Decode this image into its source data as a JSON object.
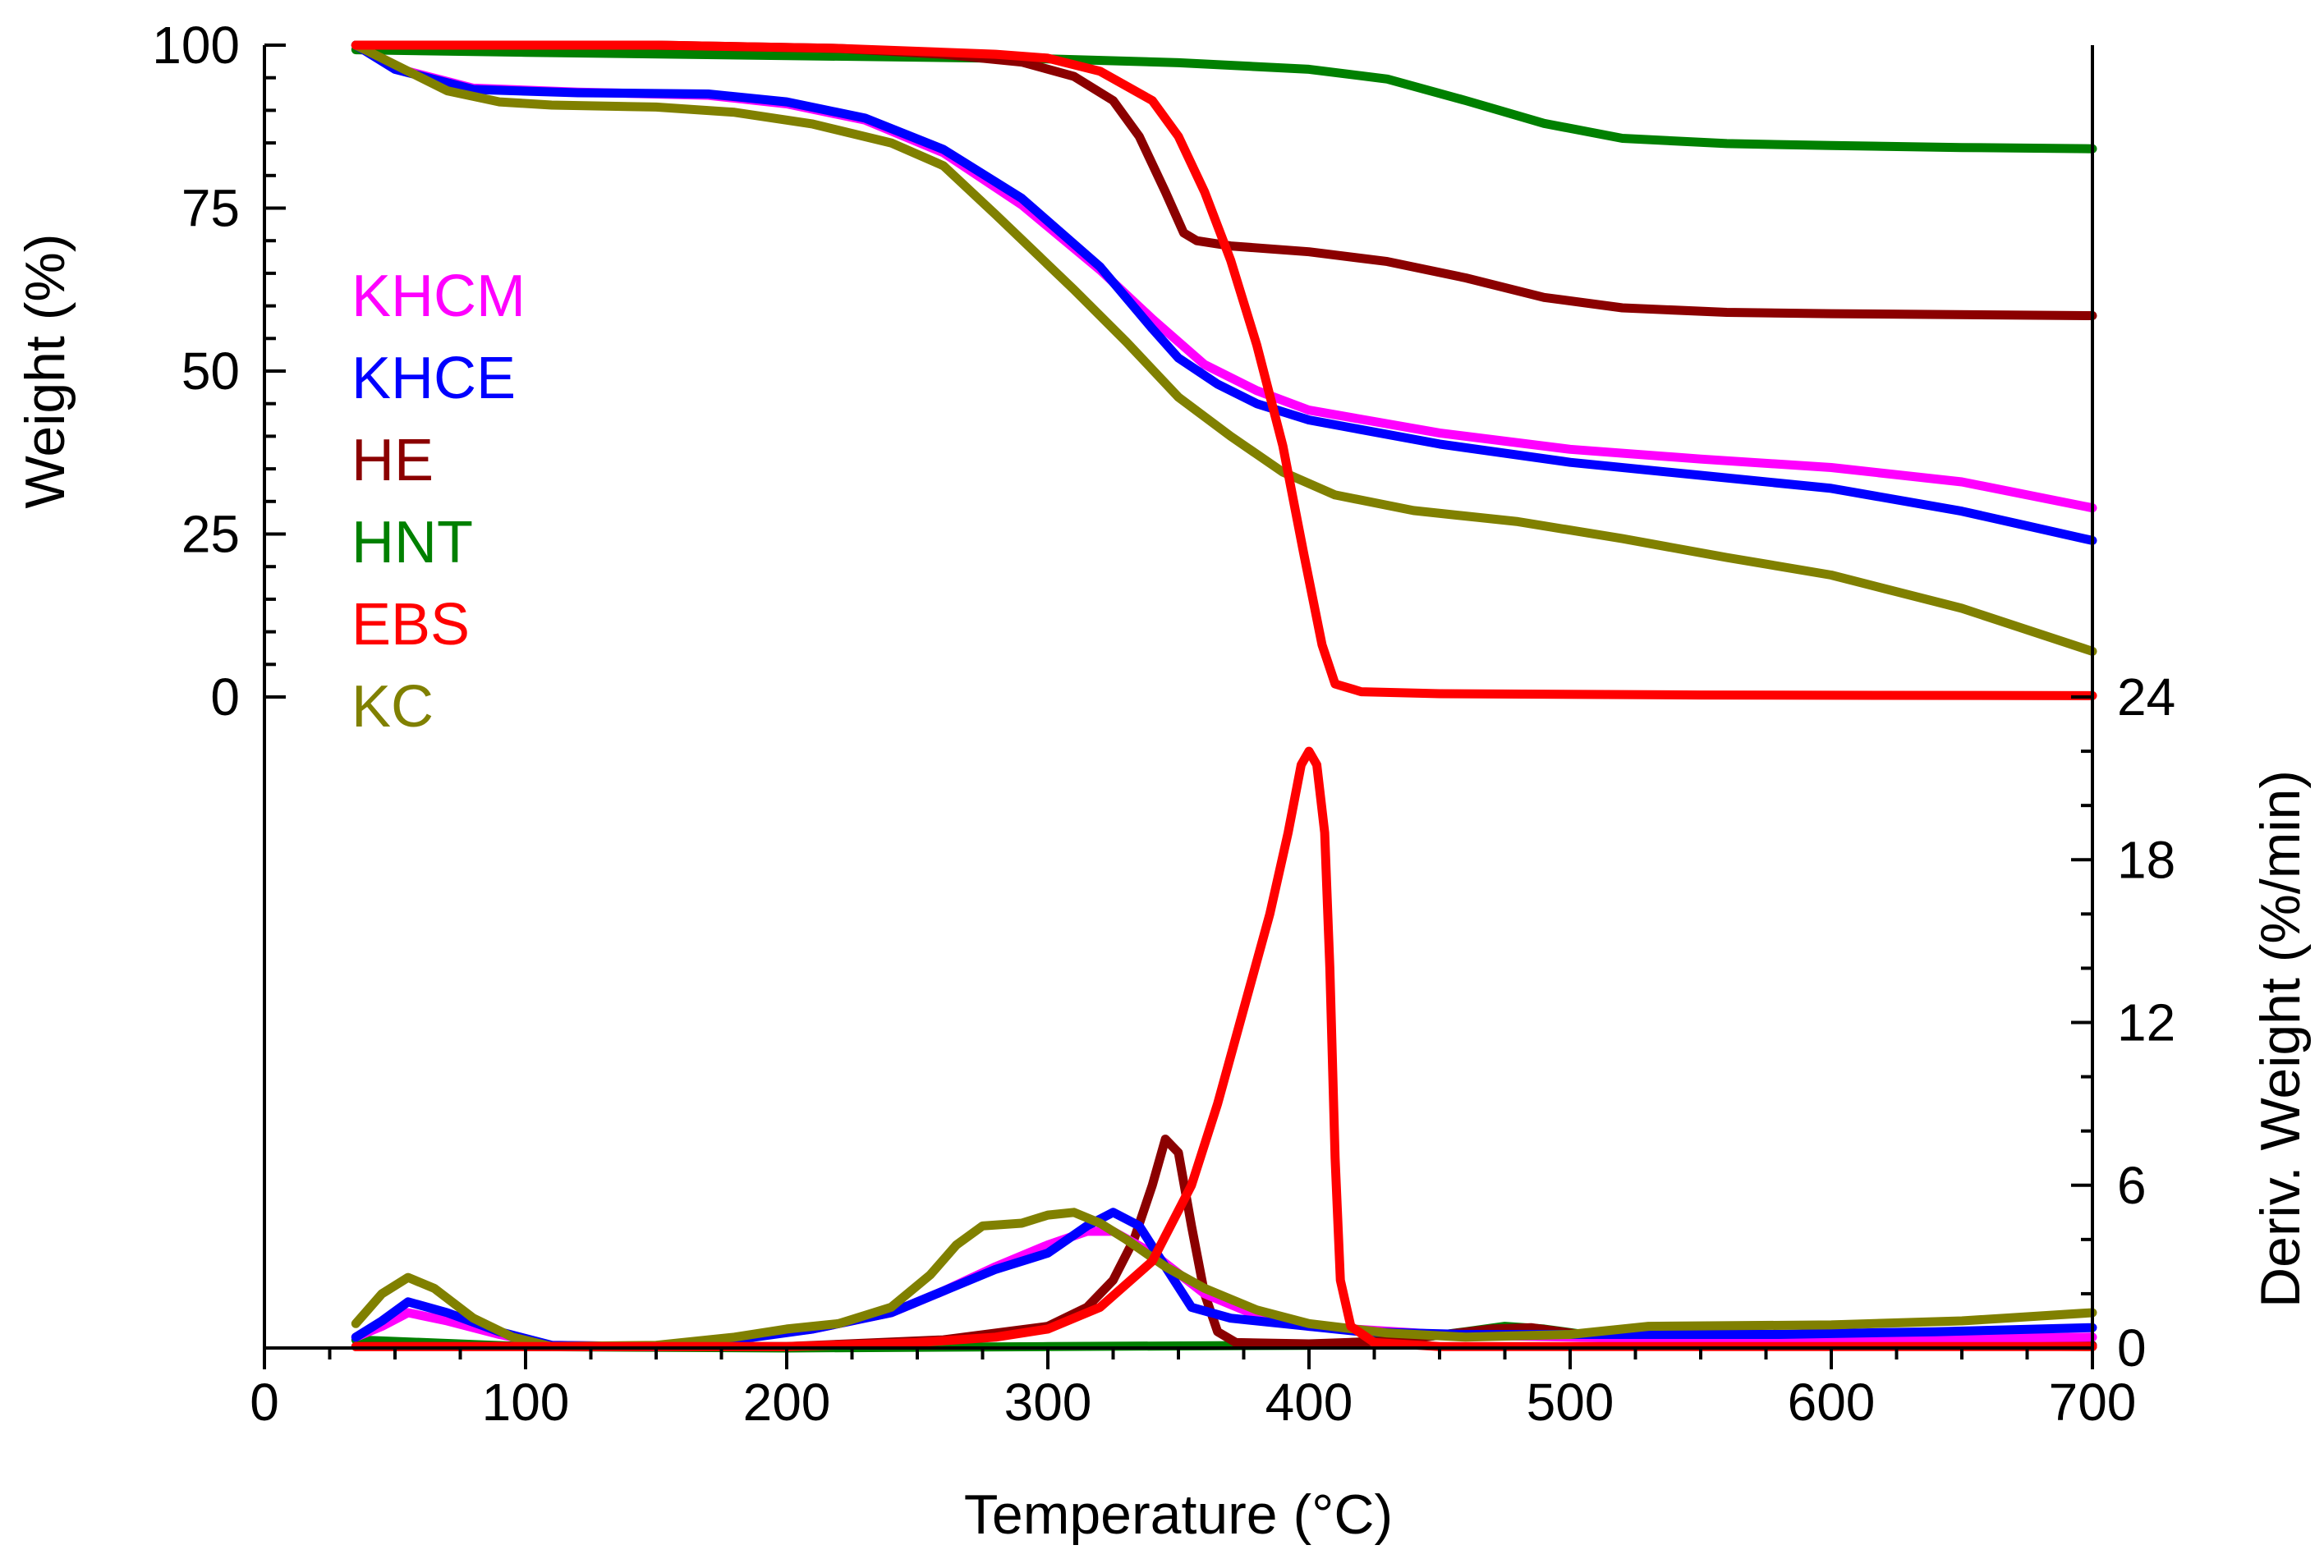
{
  "chart_data": {
    "type": "line",
    "x_axis": {
      "label": "Temperature (°C)",
      "range": [
        0,
        700
      ],
      "ticks": [
        0,
        100,
        200,
        300,
        400,
        500,
        600,
        700
      ],
      "minor_step": 25
    },
    "y_left": {
      "label": "Weight (%)",
      "range": [
        0,
        100
      ],
      "ticks": [
        0,
        25,
        50,
        75,
        100
      ],
      "minor_step": 5
    },
    "y_right": {
      "label": "Deriv. Weight (%/min)",
      "range": [
        0,
        24
      ],
      "ticks": [
        0,
        6,
        12,
        18,
        24
      ],
      "minor_step": 2
    },
    "legend": [
      {
        "label": "KHCM",
        "color": "#ff00ff"
      },
      {
        "label": "KHCE",
        "color": "#0000ff"
      },
      {
        "label": "HE",
        "color": "#8b0000"
      },
      {
        "label": "HNT",
        "color": "#008000"
      },
      {
        "label": "EBS",
        "color": "#ff0000"
      },
      {
        "label": "KC",
        "color": "#808000"
      }
    ],
    "weight_series": [
      {
        "name": "HNT",
        "color": "#008000",
        "points": [
          [
            35,
            99.3
          ],
          [
            100,
            98.9
          ],
          [
            200,
            98.4
          ],
          [
            300,
            97.9
          ],
          [
            350,
            97.3
          ],
          [
            400,
            96.3
          ],
          [
            430,
            94.8
          ],
          [
            460,
            91.5
          ],
          [
            490,
            88
          ],
          [
            520,
            85.7
          ],
          [
            560,
            84.9
          ],
          [
            600,
            84.6
          ],
          [
            650,
            84.3
          ],
          [
            700,
            84.1
          ]
        ]
      },
      {
        "name": "HE",
        "color": "#8b0000",
        "points": [
          [
            35,
            100
          ],
          [
            150,
            100
          ],
          [
            220,
            99.5
          ],
          [
            260,
            98.6
          ],
          [
            290,
            97.4
          ],
          [
            310,
            95.2
          ],
          [
            325,
            91.5
          ],
          [
            335,
            86
          ],
          [
            345,
            77.5
          ],
          [
            352,
            71.2
          ],
          [
            357,
            70
          ],
          [
            370,
            69.2
          ],
          [
            400,
            68.3
          ],
          [
            430,
            66.8
          ],
          [
            460,
            64.3
          ],
          [
            490,
            61.3
          ],
          [
            520,
            59.7
          ],
          [
            560,
            59
          ],
          [
            600,
            58.8
          ],
          [
            700,
            58.5
          ]
        ]
      },
      {
        "name": "KHCM",
        "color": "#ff00ff",
        "points": [
          [
            35,
            100
          ],
          [
            50,
            96.5
          ],
          [
            80,
            93.4
          ],
          [
            120,
            92.8
          ],
          [
            170,
            92.3
          ],
          [
            200,
            91
          ],
          [
            230,
            88.5
          ],
          [
            260,
            83.5
          ],
          [
            290,
            75.5
          ],
          [
            320,
            65.5
          ],
          [
            340,
            58
          ],
          [
            360,
            51
          ],
          [
            380,
            47
          ],
          [
            400,
            44
          ],
          [
            450,
            40.5
          ],
          [
            500,
            38
          ],
          [
            550,
            36.5
          ],
          [
            600,
            35.2
          ],
          [
            650,
            33
          ],
          [
            700,
            29
          ]
        ]
      },
      {
        "name": "KHCE",
        "color": "#0000ff",
        "points": [
          [
            35,
            100
          ],
          [
            50,
            96.3
          ],
          [
            80,
            93.2
          ],
          [
            120,
            92.7
          ],
          [
            170,
            92.5
          ],
          [
            200,
            91.3
          ],
          [
            230,
            88.8
          ],
          [
            260,
            84
          ],
          [
            290,
            76.5
          ],
          [
            320,
            66
          ],
          [
            340,
            56.5
          ],
          [
            350,
            52
          ],
          [
            365,
            48
          ],
          [
            380,
            45
          ],
          [
            400,
            42.5
          ],
          [
            450,
            38.8
          ],
          [
            500,
            36
          ],
          [
            550,
            34
          ],
          [
            600,
            32
          ],
          [
            650,
            28.5
          ],
          [
            700,
            24
          ]
        ]
      },
      {
        "name": "KC",
        "color": "#808000",
        "points": [
          [
            35,
            100
          ],
          [
            50,
            97
          ],
          [
            70,
            93
          ],
          [
            90,
            91.3
          ],
          [
            110,
            90.8
          ],
          [
            150,
            90.5
          ],
          [
            180,
            89.7
          ],
          [
            210,
            87.9
          ],
          [
            240,
            85
          ],
          [
            260,
            81.5
          ],
          [
            280,
            74
          ],
          [
            310,
            62.5
          ],
          [
            330,
            54.5
          ],
          [
            350,
            46
          ],
          [
            370,
            40
          ],
          [
            390,
            34.5
          ],
          [
            410,
            31
          ],
          [
            440,
            28.6
          ],
          [
            480,
            26.9
          ],
          [
            520,
            24.3
          ],
          [
            560,
            21.4
          ],
          [
            600,
            18.7
          ],
          [
            650,
            13.6
          ],
          [
            700,
            7
          ]
        ]
      },
      {
        "name": "EBS",
        "color": "#ff0000",
        "points": [
          [
            35,
            100
          ],
          [
            150,
            100
          ],
          [
            220,
            99.5
          ],
          [
            280,
            98.6
          ],
          [
            300,
            98
          ],
          [
            320,
            96
          ],
          [
            340,
            91.5
          ],
          [
            350,
            86
          ],
          [
            360,
            77.5
          ],
          [
            370,
            67
          ],
          [
            380,
            54
          ],
          [
            390,
            38.5
          ],
          [
            398,
            22
          ],
          [
            405,
            8
          ],
          [
            410,
            2
          ],
          [
            420,
            0.8
          ],
          [
            450,
            0.5
          ],
          [
            550,
            0.3
          ],
          [
            700,
            0.2
          ]
        ]
      }
    ],
    "deriv_series": [
      {
        "name": "HNT",
        "color": "#008000",
        "points": [
          [
            35,
            0.3
          ],
          [
            100,
            0.05
          ],
          [
            200,
            0
          ],
          [
            300,
            0.05
          ],
          [
            400,
            0.1
          ],
          [
            440,
            0.35
          ],
          [
            460,
            0.6
          ],
          [
            475,
            0.8
          ],
          [
            490,
            0.7
          ],
          [
            505,
            0.5
          ],
          [
            520,
            0.3
          ],
          [
            560,
            0.15
          ],
          [
            700,
            0.05
          ]
        ]
      },
      {
        "name": "HE",
        "color": "#8b0000",
        "points": [
          [
            35,
            0.05
          ],
          [
            200,
            0.05
          ],
          [
            260,
            0.3
          ],
          [
            300,
            0.8
          ],
          [
            315,
            1.5
          ],
          [
            325,
            2.5
          ],
          [
            333,
            4
          ],
          [
            340,
            6
          ],
          [
            345,
            7.7
          ],
          [
            350,
            7.2
          ],
          [
            355,
            4.5
          ],
          [
            360,
            2
          ],
          [
            365,
            0.6
          ],
          [
            372,
            0.2
          ],
          [
            400,
            0.15
          ],
          [
            430,
            0.25
          ],
          [
            470,
            0.7
          ],
          [
            485,
            0.75
          ],
          [
            500,
            0.55
          ],
          [
            520,
            0.3
          ],
          [
            560,
            0.15
          ],
          [
            700,
            0.1
          ]
        ]
      },
      {
        "name": "KHCM",
        "color": "#ff00ff",
        "points": [
          [
            35,
            0.4
          ],
          [
            45,
            0.8
          ],
          [
            55,
            1.3
          ],
          [
            70,
            1
          ],
          [
            90,
            0.5
          ],
          [
            110,
            0.1
          ],
          [
            150,
            0.05
          ],
          [
            180,
            0.35
          ],
          [
            210,
            0.7
          ],
          [
            240,
            1.3
          ],
          [
            260,
            2.1
          ],
          [
            280,
            3
          ],
          [
            300,
            3.8
          ],
          [
            315,
            4.3
          ],
          [
            325,
            4.3
          ],
          [
            340,
            3.5
          ],
          [
            360,
            2
          ],
          [
            380,
            1.2
          ],
          [
            400,
            0.8
          ],
          [
            450,
            0.5
          ],
          [
            500,
            0.4
          ],
          [
            550,
            0.3
          ],
          [
            600,
            0.3
          ],
          [
            700,
            0.4
          ]
        ]
      },
      {
        "name": "KHCE",
        "color": "#0000ff",
        "points": [
          [
            35,
            0.4
          ],
          [
            45,
            1
          ],
          [
            55,
            1.7
          ],
          [
            70,
            1.3
          ],
          [
            90,
            0.6
          ],
          [
            110,
            0.1
          ],
          [
            150,
            0.05
          ],
          [
            180,
            0.3
          ],
          [
            210,
            0.7
          ],
          [
            240,
            1.3
          ],
          [
            260,
            2.1
          ],
          [
            280,
            2.9
          ],
          [
            300,
            3.5
          ],
          [
            315,
            4.5
          ],
          [
            325,
            5
          ],
          [
            335,
            4.5
          ],
          [
            345,
            3
          ],
          [
            355,
            1.5
          ],
          [
            370,
            1.1
          ],
          [
            390,
            0.9
          ],
          [
            420,
            0.6
          ],
          [
            460,
            0.5
          ],
          [
            520,
            0.5
          ],
          [
            580,
            0.5
          ],
          [
            640,
            0.6
          ],
          [
            700,
            0.75
          ]
        ]
      },
      {
        "name": "KC",
        "color": "#808000",
        "points": [
          [
            35,
            0.9
          ],
          [
            45,
            2
          ],
          [
            55,
            2.6
          ],
          [
            65,
            2.2
          ],
          [
            80,
            1.1
          ],
          [
            95,
            0.4
          ],
          [
            110,
            0.05
          ],
          [
            150,
            0.1
          ],
          [
            180,
            0.4
          ],
          [
            200,
            0.7
          ],
          [
            220,
            0.9
          ],
          [
            240,
            1.5
          ],
          [
            255,
            2.7
          ],
          [
            265,
            3.8
          ],
          [
            275,
            4.5
          ],
          [
            290,
            4.6
          ],
          [
            300,
            4.9
          ],
          [
            310,
            5
          ],
          [
            320,
            4.6
          ],
          [
            330,
            4
          ],
          [
            345,
            3
          ],
          [
            360,
            2.2
          ],
          [
            380,
            1.4
          ],
          [
            400,
            0.9
          ],
          [
            430,
            0.55
          ],
          [
            460,
            0.4
          ],
          [
            500,
            0.5
          ],
          [
            530,
            0.8
          ],
          [
            600,
            0.85
          ],
          [
            650,
            1
          ],
          [
            700,
            1.3
          ]
        ]
      },
      {
        "name": "EBS",
        "color": "#ff0000",
        "points": [
          [
            35,
            0.05
          ],
          [
            200,
            0.05
          ],
          [
            250,
            0.2
          ],
          [
            280,
            0.4
          ],
          [
            300,
            0.7
          ],
          [
            320,
            1.5
          ],
          [
            340,
            3.2
          ],
          [
            355,
            6
          ],
          [
            365,
            9
          ],
          [
            375,
            12.5
          ],
          [
            385,
            16
          ],
          [
            392,
            19
          ],
          [
            397,
            21.5
          ],
          [
            400,
            22
          ],
          [
            403,
            21.5
          ],
          [
            406,
            19
          ],
          [
            408,
            14
          ],
          [
            410,
            7
          ],
          [
            412,
            2.5
          ],
          [
            416,
            0.8
          ],
          [
            425,
            0.2
          ],
          [
            450,
            0.05
          ],
          [
            700,
            0.05
          ]
        ]
      }
    ]
  }
}
